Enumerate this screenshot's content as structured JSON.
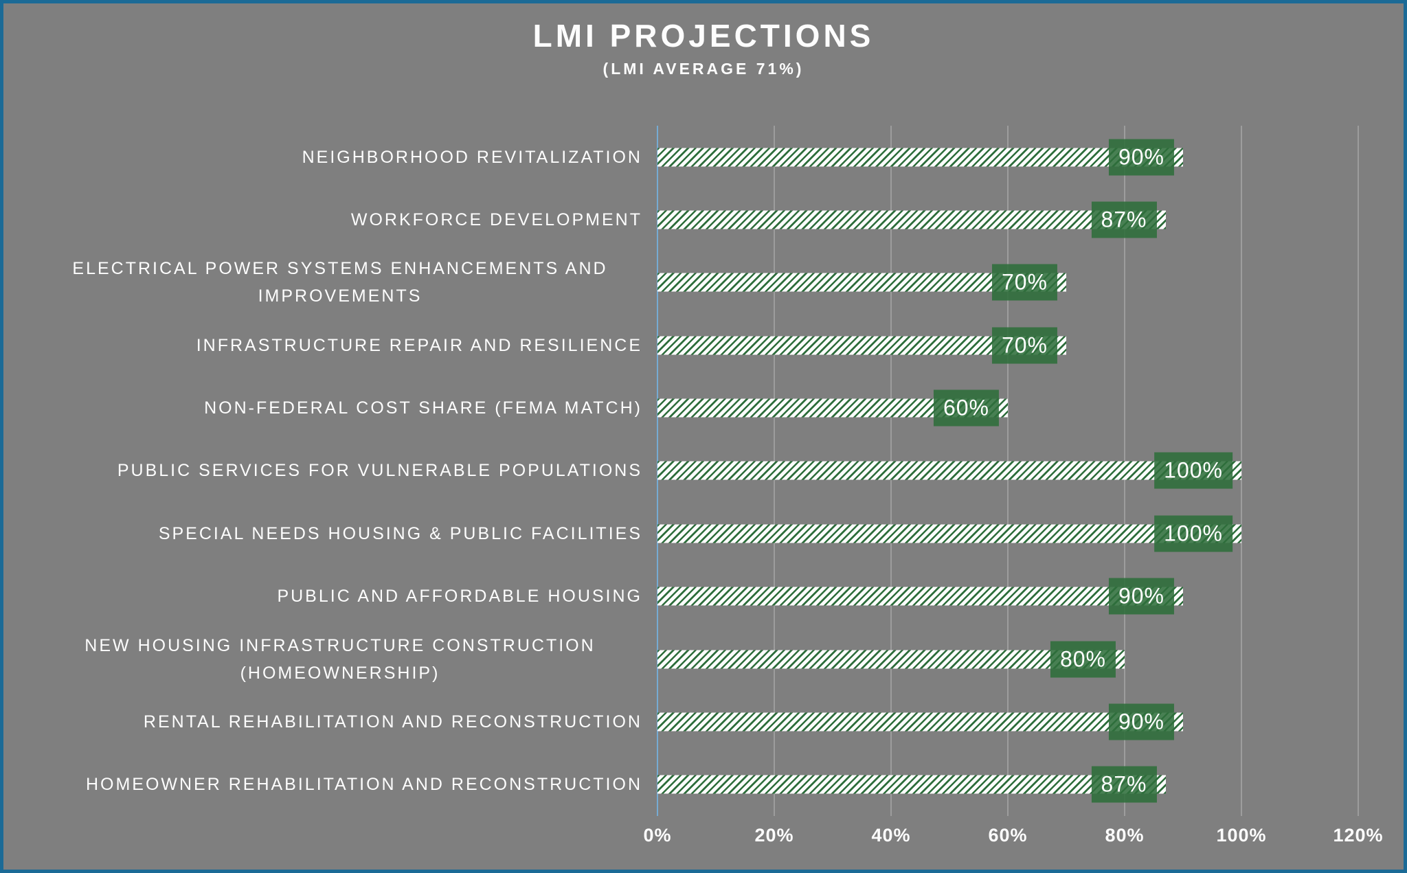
{
  "title": "LMI PROJECTIONS",
  "subtitle": "(LMI AVERAGE 71%)",
  "chart_data": {
    "type": "bar",
    "orientation": "horizontal",
    "title": "LMI PROJECTIONS",
    "subtitle": "(LMI AVERAGE 71%)",
    "categories": [
      "NEIGHBORHOOD REVITALIZATION",
      "WORKFORCE DEVELOPMENT",
      "ELECTRICAL POWER SYSTEMS ENHANCEMENTS AND IMPROVEMENTS",
      "INFRASTRUCTURE REPAIR AND RESILIENCE",
      "NON-FEDERAL COST SHARE (FEMA MATCH)",
      "PUBLIC SERVICES FOR VULNERABLE POPULATIONS",
      "SPECIAL NEEDS HOUSING & PUBLIC FACILITIES",
      "PUBLIC AND AFFORDABLE HOUSING",
      "NEW HOUSING INFRASTRUCTURE CONSTRUCTION (HOMEOWNERSHIP)",
      "RENTAL REHABILITATION AND RECONSTRUCTION",
      "HOMEOWNER REHABILITATION AND RECONSTRUCTION"
    ],
    "values": [
      90,
      87,
      70,
      70,
      60,
      100,
      100,
      90,
      80,
      90,
      87
    ],
    "data_labels": [
      "90%",
      "87%",
      "70%",
      "70%",
      "60%",
      "100%",
      "100%",
      "90%",
      "80%",
      "90%",
      "87%"
    ],
    "x_tick_labels": [
      "0%",
      "20%",
      "40%",
      "60%",
      "80%",
      "100%",
      "120%"
    ],
    "x_tick_values": [
      0,
      20,
      40,
      60,
      80,
      100,
      120
    ],
    "xlim": [
      0,
      120
    ],
    "grid": true,
    "legend": false,
    "data_label_style": "inside-end-green-box"
  },
  "colors": {
    "background": "#7f7f7f",
    "frame_border": "#1b6a96",
    "bar_hatch_green": "#2d6d3b",
    "bar_hatch_white": "#fdfdfd",
    "data_label_box_green": "#347440",
    "gridline": "#9d9d9d",
    "zero_axis_line_blue": "#76abd3",
    "text": "#ffffff"
  }
}
